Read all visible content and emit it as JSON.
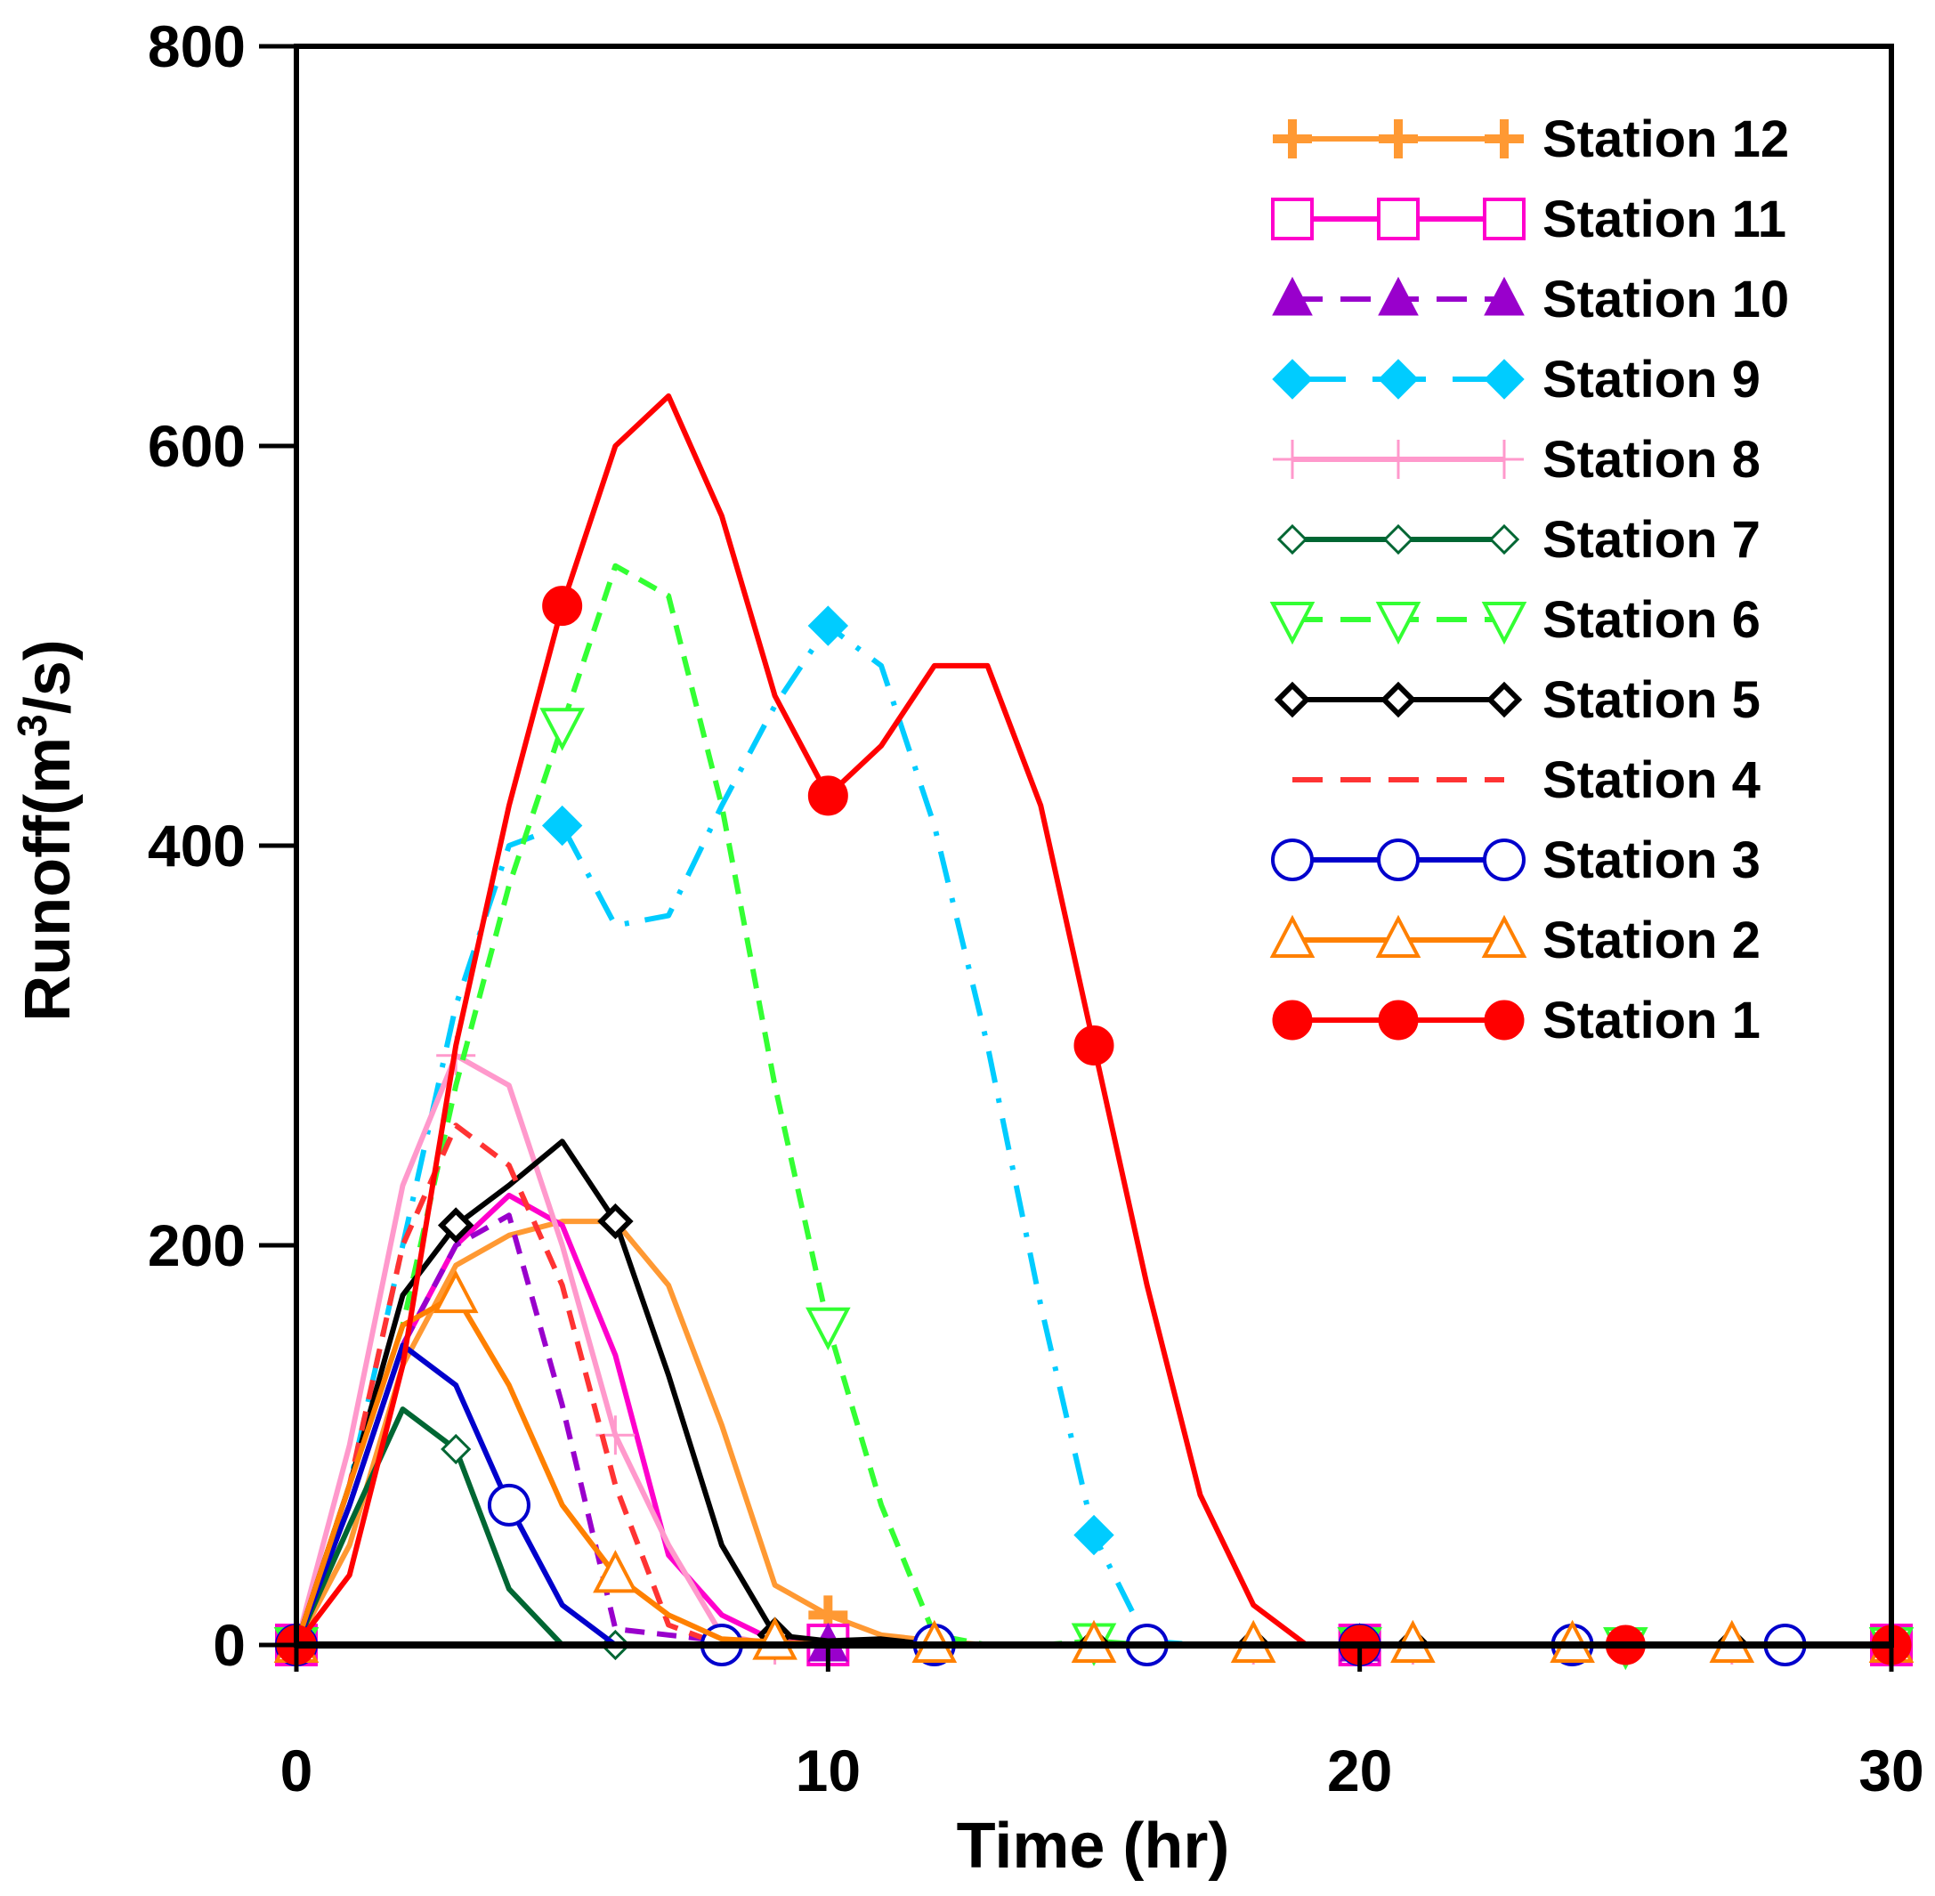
{
  "chart_data": {
    "type": "line",
    "title": "",
    "xlabel": "Time (hr)",
    "ylabel": "Runoff(m³/s)",
    "ylabel_parts": {
      "before": "Runoff(m",
      "sup": "3",
      "after": "/s)"
    },
    "xlim": [
      0,
      30
    ],
    "ylim": [
      0,
      800
    ],
    "xticks": [
      0,
      10,
      20,
      30
    ],
    "yticks": [
      0,
      200,
      400,
      600,
      800
    ],
    "grid": false,
    "legend_position": "top-right",
    "series": [
      {
        "name": "Station 12",
        "color": "#ff9933",
        "dash": "solid",
        "marker": "plus",
        "x": [
          0,
          1,
          2,
          3,
          4,
          5,
          6,
          7,
          8,
          9,
          10,
          11,
          12,
          13,
          14,
          15,
          16,
          17,
          18,
          19,
          20,
          21,
          22,
          23,
          24,
          25,
          26,
          27,
          28,
          29,
          30
        ],
        "y": [
          0,
          50,
          140,
          190,
          205,
          212,
          212,
          180,
          110,
          30,
          15,
          5,
          2,
          0,
          0,
          0,
          0,
          0,
          0,
          0,
          0,
          0,
          0,
          0,
          0,
          0,
          0,
          0,
          0,
          0,
          0
        ],
        "marker_x": [
          0,
          10,
          20,
          30
        ]
      },
      {
        "name": "Station 11",
        "color": "#ff00cc",
        "dash": "solid",
        "marker": "square",
        "x": [
          0,
          1,
          2,
          3,
          4,
          5,
          6,
          7,
          8,
          9,
          10,
          12,
          14,
          16,
          18,
          20,
          22,
          24,
          26,
          28,
          30
        ],
        "y": [
          0,
          70,
          150,
          200,
          225,
          210,
          145,
          45,
          15,
          2,
          0,
          0,
          0,
          0,
          0,
          0,
          0,
          0,
          0,
          0,
          0
        ],
        "marker_x": [
          0,
          10,
          20,
          30
        ]
      },
      {
        "name": "Station 10",
        "color": "#9900cc",
        "dash": "dashed",
        "marker": "triangle-filled",
        "x": [
          0,
          1,
          2,
          3,
          4,
          5,
          6,
          7,
          8,
          9,
          10,
          12,
          14,
          16,
          18,
          20,
          22,
          24,
          26,
          28,
          30
        ],
        "y": [
          0,
          70,
          150,
          200,
          215,
          120,
          8,
          5,
          2,
          0,
          0,
          0,
          0,
          0,
          0,
          0,
          0,
          0,
          0,
          0,
          0
        ],
        "marker_x": [
          0,
          10,
          20,
          30
        ]
      },
      {
        "name": "Station 9",
        "color": "#00ccff",
        "dash": "dashdot",
        "marker": "diamond-filled",
        "x": [
          0,
          1,
          2,
          3,
          4,
          5,
          6,
          7,
          8,
          9,
          10,
          11,
          12,
          13,
          14,
          15,
          16,
          17,
          18,
          20,
          22,
          24,
          26,
          28,
          30
        ],
        "y": [
          0,
          80,
          200,
          320,
          400,
          410,
          360,
          365,
          420,
          470,
          510,
          490,
          410,
          300,
          170,
          55,
          2,
          0,
          0,
          0,
          0,
          0,
          0,
          0,
          0
        ],
        "marker_x": [
          0,
          5,
          10,
          15,
          20,
          25,
          30
        ]
      },
      {
        "name": "Station 8",
        "color": "#ff99cc",
        "dash": "solid",
        "marker": "plus-thin",
        "x": [
          0,
          1,
          2,
          3,
          4,
          5,
          6,
          7,
          8,
          9,
          10,
          12,
          14,
          16,
          18,
          20,
          22,
          24,
          26,
          28,
          30
        ],
        "y": [
          0,
          100,
          230,
          295,
          280,
          200,
          105,
          50,
          5,
          0,
          0,
          0,
          0,
          0,
          0,
          0,
          0,
          0,
          0,
          0,
          0
        ],
        "marker_x": [
          0,
          3,
          6,
          9,
          12,
          15,
          18,
          21,
          24,
          27,
          30
        ]
      },
      {
        "name": "Station 7",
        "color": "#006633",
        "dash": "solid",
        "marker": "diamond-open",
        "x": [
          0,
          1,
          2,
          3,
          4,
          5,
          6,
          7,
          8,
          10,
          12,
          14,
          16,
          18,
          20,
          22,
          24,
          26,
          28,
          30
        ],
        "y": [
          0,
          60,
          118,
          98,
          28,
          0,
          0,
          0,
          0,
          0,
          0,
          0,
          0,
          0,
          0,
          0,
          0,
          0,
          0,
          0
        ],
        "marker_x": [
          0,
          3,
          6,
          9,
          12,
          15,
          18,
          21,
          24,
          27,
          30
        ]
      },
      {
        "name": "Station 6",
        "color": "#33ff33",
        "dash": "dashed",
        "marker": "triangle-down-open",
        "x": [
          0,
          1,
          2,
          3,
          4,
          5,
          6,
          7,
          8,
          9,
          10,
          11,
          12,
          13,
          14,
          15,
          16,
          18,
          20,
          22,
          24,
          26,
          28,
          30
        ],
        "y": [
          0,
          80,
          160,
          280,
          380,
          460,
          540,
          525,
          420,
          280,
          160,
          70,
          5,
          0,
          0,
          2,
          0,
          0,
          0,
          0,
          0,
          0,
          0,
          0
        ],
        "marker_x": [
          0,
          5,
          10,
          15,
          20,
          25,
          30
        ]
      },
      {
        "name": "Station 5",
        "color": "#000000",
        "dash": "solid",
        "marker": "diamond-bold",
        "x": [
          0,
          1,
          2,
          3,
          4,
          5,
          6,
          7,
          8,
          9,
          10,
          11,
          12,
          14,
          16,
          18,
          20,
          22,
          24,
          26,
          28,
          30
        ],
        "y": [
          0,
          80,
          175,
          210,
          230,
          252,
          212,
          135,
          50,
          5,
          2,
          3,
          0,
          0,
          0,
          0,
          0,
          0,
          0,
          0,
          0,
          0
        ],
        "marker_x": [
          0,
          3,
          6,
          9,
          12,
          15,
          18,
          21,
          24,
          27,
          30
        ]
      },
      {
        "name": "Station 4",
        "color": "#ff3333",
        "dash": "dashed",
        "marker": "none",
        "x": [
          0,
          1,
          2,
          3,
          4,
          5,
          6,
          7,
          8,
          10,
          12,
          14,
          16,
          18,
          20,
          22,
          24,
          26,
          28,
          30
        ],
        "y": [
          0,
          80,
          200,
          260,
          240,
          180,
          80,
          10,
          0,
          0,
          0,
          0,
          0,
          0,
          0,
          0,
          0,
          0,
          0,
          0
        ],
        "marker_x": []
      },
      {
        "name": "Station 3",
        "color": "#0000cc",
        "dash": "solid",
        "marker": "circle-open",
        "x": [
          0,
          1,
          2,
          3,
          4,
          5,
          6,
          7,
          8,
          10,
          12,
          14,
          16,
          18,
          20,
          22,
          24,
          26,
          28,
          30
        ],
        "y": [
          0,
          70,
          150,
          130,
          70,
          20,
          0,
          0,
          0,
          0,
          0,
          0,
          0,
          0,
          0,
          0,
          0,
          0,
          0,
          0
        ],
        "marker_x": [
          0,
          4,
          8,
          12,
          16,
          20,
          24,
          28
        ]
      },
      {
        "name": "Station 2",
        "color": "#ff8000",
        "dash": "solid",
        "marker": "triangle-open",
        "x": [
          0,
          1,
          2,
          3,
          4,
          5,
          6,
          7,
          8,
          10,
          12,
          14,
          16,
          18,
          20,
          22,
          24,
          26,
          28,
          30
        ],
        "y": [
          0,
          80,
          160,
          175,
          130,
          70,
          35,
          15,
          3,
          0,
          0,
          0,
          0,
          0,
          0,
          0,
          0,
          0,
          0,
          0
        ],
        "marker_x": [
          0,
          3,
          6,
          9,
          12,
          15,
          18,
          21,
          24,
          27,
          30
        ]
      },
      {
        "name": "Station 1",
        "color": "#ff0000",
        "dash": "solid",
        "marker": "circle-filled",
        "x": [
          0,
          1,
          2,
          3,
          4,
          5,
          6,
          7,
          8,
          9,
          10,
          11,
          12,
          13,
          14,
          15,
          16,
          17,
          18,
          19,
          20,
          22,
          24,
          25,
          26,
          28,
          30
        ],
        "y": [
          0,
          35,
          140,
          300,
          420,
          520,
          600,
          625,
          565,
          475,
          425,
          450,
          490,
          490,
          420,
          300,
          180,
          75,
          20,
          0,
          0,
          0,
          0,
          0,
          0,
          0,
          0
        ],
        "marker_x": [
          0,
          5,
          10,
          15,
          20,
          25,
          30
        ]
      }
    ]
  }
}
